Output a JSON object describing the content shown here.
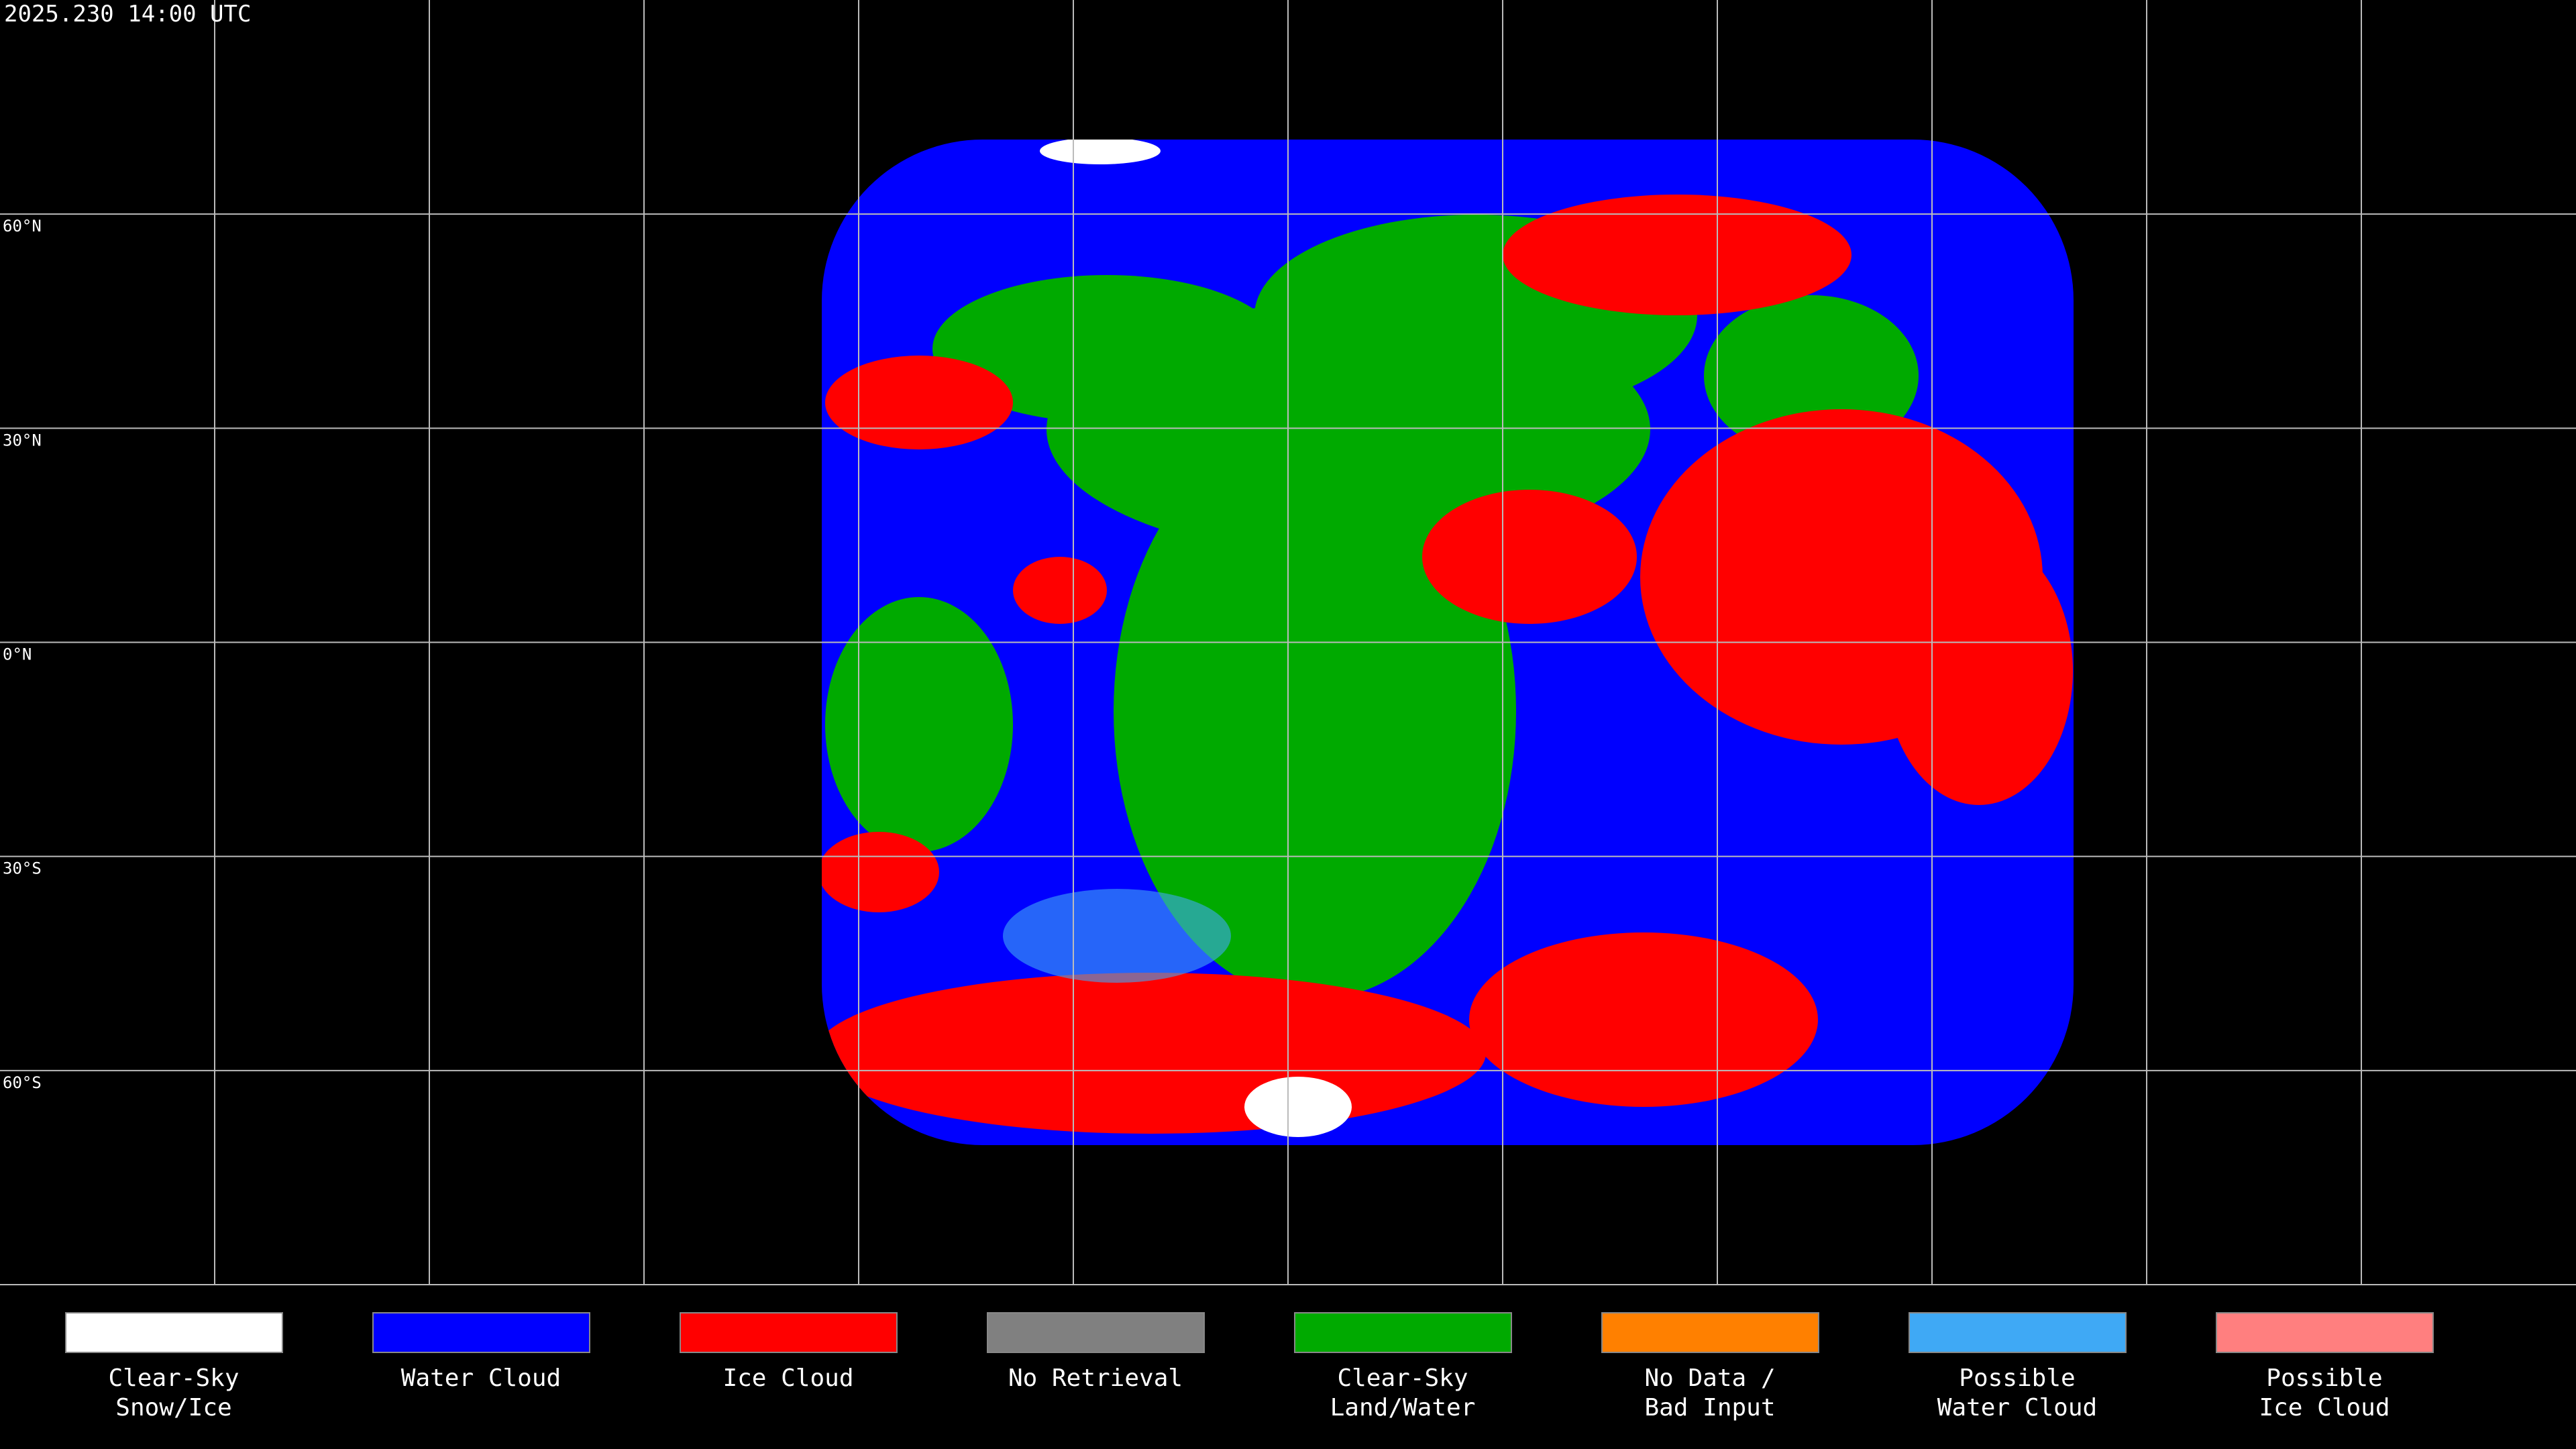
{
  "timestamp": "2025.230 14:00 UTC",
  "lat_labels": [
    "60°N",
    "30°N",
    "0°N",
    "30°S",
    "60°S"
  ],
  "legend": [
    {
      "label": [
        "Clear-Sky",
        "Snow/Ice"
      ],
      "color": "#ffffff"
    },
    {
      "label": [
        "Water Cloud"
      ],
      "color": "#0000ff"
    },
    {
      "label": [
        "Ice Cloud"
      ],
      "color": "#ff0000"
    },
    {
      "label": [
        "No Retrieval"
      ],
      "color": "#808080"
    },
    {
      "label": [
        "Clear-Sky",
        "Land/Water"
      ],
      "color": "#00aa00"
    },
    {
      "label": [
        "No Data /",
        "Bad Input"
      ],
      "color": "#ff8000"
    },
    {
      "label": [
        "Possible",
        "Water Cloud"
      ],
      "color": "#3fa9f5"
    },
    {
      "label": [
        "Possible",
        "Ice Cloud"
      ],
      "color": "#ff7f7f"
    }
  ]
}
